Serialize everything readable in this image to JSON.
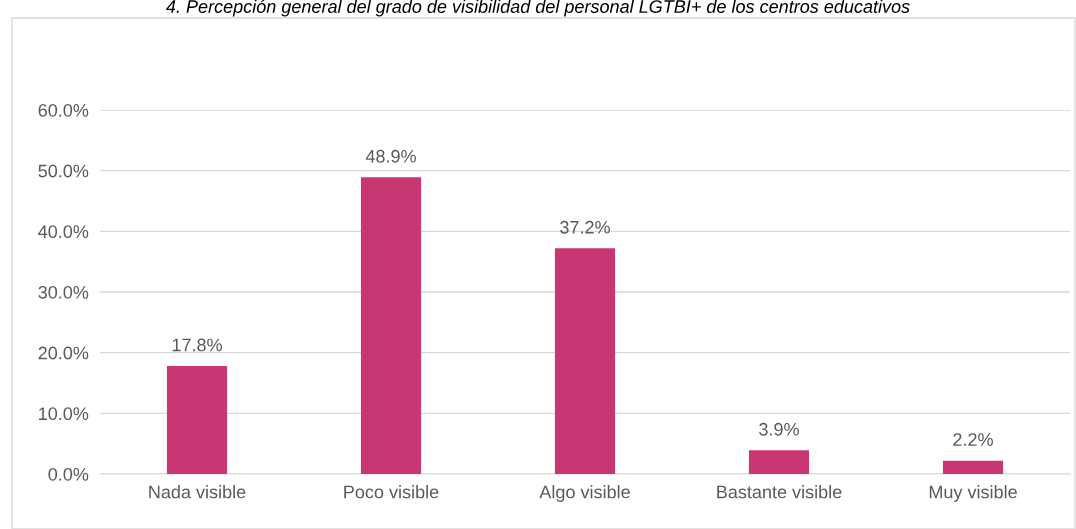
{
  "chart_data": {
    "type": "bar",
    "title": "4. Percepción general del grado de visibilidad del personal LGTBI+ de los centros educativos",
    "categories": [
      "Nada visible",
      "Poco visible",
      "Algo visible",
      "Bastante visible",
      "Muy visible"
    ],
    "values": [
      17.8,
      48.9,
      37.2,
      3.9,
      2.2
    ],
    "color": "#c83773",
    "value_labels": [
      "17.8%",
      "48.9%",
      "37.2%",
      "3.9%",
      "2.2%"
    ],
    "ylim": [
      0,
      60
    ],
    "yticks": [
      {
        "value": 0,
        "label": "0.0%"
      },
      {
        "value": 10,
        "label": "10.0%"
      },
      {
        "value": 20,
        "label": "20.0%"
      },
      {
        "value": 30,
        "label": "30.0%"
      },
      {
        "value": 40,
        "label": "40.0%"
      },
      {
        "value": 50,
        "label": "50.0%"
      },
      {
        "value": 60,
        "label": "60.0%"
      }
    ],
    "grid": "y",
    "legend": false
  }
}
